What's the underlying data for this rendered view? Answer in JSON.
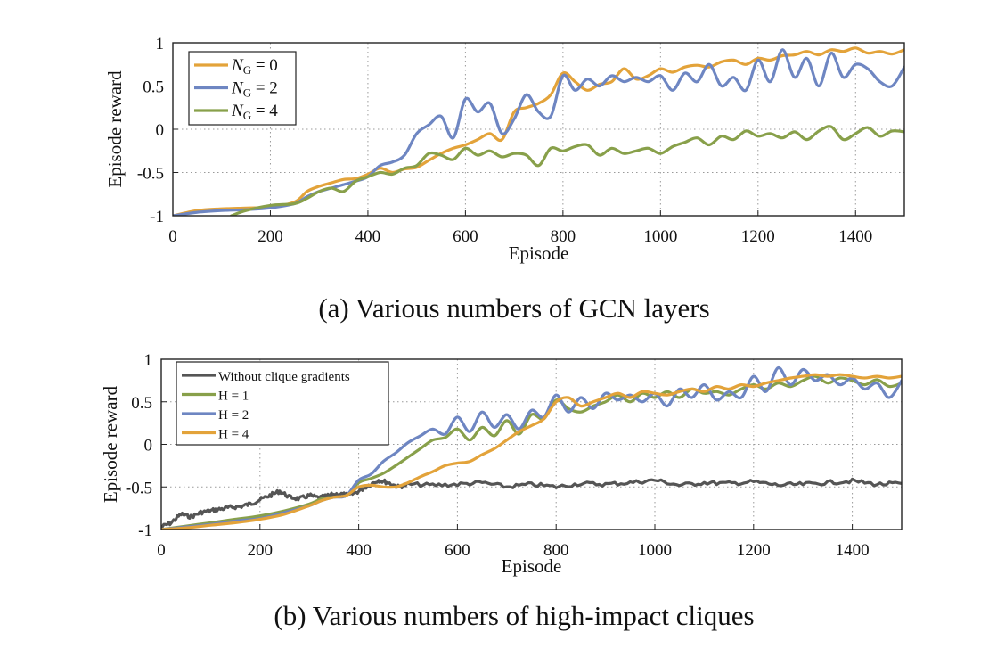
{
  "chart_data": [
    {
      "type": "line",
      "caption": "(a) Various numbers of GCN layers",
      "xlabel": "Episode",
      "ylabel": "Episode reward",
      "xlim": [
        0,
        1500
      ],
      "ylim": [
        -1,
        1
      ],
      "xticks": [
        0,
        200,
        400,
        600,
        800,
        1000,
        1200,
        1400
      ],
      "yticks": [
        1,
        0.5,
        0,
        -0.5,
        -1
      ],
      "ytick_labels": [
        "1",
        "0.5",
        "0",
        "-0.5",
        "-1"
      ],
      "grid": true,
      "legend_position": "top-left",
      "series": [
        {
          "name": "N_G = 0",
          "legend_main": "N",
          "legend_sub": "G",
          "legend_rest": " = 0",
          "color": "#E3A33A",
          "x": [
            0,
            50,
            100,
            150,
            200,
            250,
            275,
            300,
            325,
            350,
            375,
            400,
            425,
            450,
            475,
            500,
            525,
            550,
            575,
            600,
            625,
            650,
            675,
            700,
            725,
            750,
            775,
            800,
            825,
            850,
            875,
            900,
            925,
            950,
            975,
            1000,
            1025,
            1050,
            1075,
            1100,
            1125,
            1150,
            1175,
            1200,
            1225,
            1250,
            1275,
            1300,
            1325,
            1350,
            1375,
            1400,
            1425,
            1450,
            1475,
            1500
          ],
          "y": [
            -1,
            -0.94,
            -0.92,
            -0.91,
            -0.9,
            -0.84,
            -0.72,
            -0.66,
            -0.62,
            -0.58,
            -0.57,
            -0.52,
            -0.45,
            -0.5,
            -0.46,
            -0.44,
            -0.36,
            -0.28,
            -0.22,
            -0.18,
            -0.12,
            -0.05,
            -0.12,
            0.2,
            0.25,
            0.3,
            0.4,
            0.65,
            0.55,
            0.45,
            0.52,
            0.55,
            0.7,
            0.58,
            0.62,
            0.7,
            0.66,
            0.72,
            0.74,
            0.72,
            0.78,
            0.8,
            0.75,
            0.82,
            0.8,
            0.85,
            0.86,
            0.9,
            0.86,
            0.92,
            0.9,
            0.94,
            0.88,
            0.9,
            0.87,
            0.92
          ]
        },
        {
          "name": "N_G = 2",
          "legend_main": "N",
          "legend_sub": "G",
          "legend_rest": " = 2",
          "color": "#6E86C2",
          "x": [
            0,
            50,
            100,
            150,
            200,
            250,
            275,
            300,
            325,
            350,
            375,
            400,
            425,
            450,
            475,
            500,
            525,
            550,
            575,
            600,
            625,
            650,
            675,
            700,
            725,
            750,
            775,
            800,
            825,
            850,
            875,
            900,
            925,
            950,
            975,
            1000,
            1025,
            1050,
            1075,
            1100,
            1125,
            1150,
            1175,
            1200,
            1225,
            1250,
            1275,
            1300,
            1325,
            1350,
            1375,
            1400,
            1425,
            1450,
            1475,
            1500
          ],
          "y": [
            -1,
            -0.96,
            -0.94,
            -0.93,
            -0.91,
            -0.86,
            -0.78,
            -0.72,
            -0.68,
            -0.64,
            -0.6,
            -0.55,
            -0.42,
            -0.38,
            -0.3,
            -0.05,
            0.05,
            0.15,
            -0.1,
            0.35,
            0.2,
            0.3,
            -0.05,
            0.12,
            0.4,
            0.2,
            0.15,
            0.62,
            0.45,
            0.58,
            0.5,
            0.62,
            0.55,
            0.6,
            0.55,
            0.62,
            0.45,
            0.65,
            0.55,
            0.75,
            0.5,
            0.6,
            0.45,
            0.8,
            0.55,
            0.92,
            0.6,
            0.82,
            0.5,
            0.88,
            0.6,
            0.75,
            0.7,
            0.55,
            0.5,
            0.72
          ]
        },
        {
          "name": "N_G = 4",
          "legend_main": "N",
          "legend_sub": "G",
          "legend_rest": " = 4",
          "color": "#88A04A",
          "x": [
            120,
            150,
            200,
            250,
            275,
            300,
            325,
            350,
            375,
            400,
            425,
            450,
            475,
            500,
            525,
            550,
            575,
            600,
            625,
            650,
            675,
            700,
            725,
            750,
            775,
            800,
            825,
            850,
            875,
            900,
            925,
            950,
            975,
            1000,
            1025,
            1050,
            1075,
            1100,
            1125,
            1150,
            1175,
            1200,
            1225,
            1250,
            1275,
            1300,
            1325,
            1350,
            1375,
            1400,
            1425,
            1450,
            1475,
            1500
          ],
          "y": [
            -1,
            -0.94,
            -0.88,
            -0.86,
            -0.8,
            -0.72,
            -0.68,
            -0.72,
            -0.6,
            -0.55,
            -0.5,
            -0.52,
            -0.45,
            -0.42,
            -0.28,
            -0.3,
            -0.35,
            -0.22,
            -0.3,
            -0.25,
            -0.32,
            -0.28,
            -0.3,
            -0.42,
            -0.22,
            -0.25,
            -0.2,
            -0.18,
            -0.3,
            -0.22,
            -0.28,
            -0.25,
            -0.22,
            -0.28,
            -0.2,
            -0.15,
            -0.1,
            -0.18,
            -0.08,
            -0.12,
            -0.02,
            -0.08,
            -0.05,
            -0.1,
            -0.03,
            -0.12,
            -0.02,
            0.03,
            -0.12,
            -0.05,
            0.02,
            -0.08,
            -0.02,
            -0.03
          ]
        }
      ]
    },
    {
      "type": "line",
      "caption": "(b) Various numbers of high-impact cliques",
      "xlabel": "Episode",
      "ylabel": "Episode reward",
      "xlim": [
        0,
        1500
      ],
      "ylim": [
        -1,
        1
      ],
      "xticks": [
        0,
        200,
        400,
        600,
        800,
        1000,
        1200,
        1400
      ],
      "yticks": [
        1,
        0.5,
        0,
        -0.5,
        -1
      ],
      "ytick_labels": [
        "1",
        "0.5",
        "0",
        "-0.5",
        "-1"
      ],
      "grid": true,
      "legend_position": "top-left",
      "series": [
        {
          "name": "Without clique gradients",
          "color": "#555555",
          "noisy": true,
          "x": [
            0,
            20,
            40,
            60,
            80,
            100,
            120,
            140,
            160,
            180,
            200,
            220,
            240,
            260,
            280,
            300,
            320,
            340,
            360,
            380,
            400,
            420,
            440,
            460,
            480,
            500,
            550,
            600,
            650,
            700,
            750,
            800,
            850,
            900,
            950,
            1000,
            1050,
            1100,
            1150,
            1200,
            1250,
            1300,
            1350,
            1400,
            1450,
            1500
          ],
          "y": [
            -0.97,
            -0.92,
            -0.82,
            -0.85,
            -0.8,
            -0.78,
            -0.76,
            -0.74,
            -0.73,
            -0.7,
            -0.65,
            -0.6,
            -0.55,
            -0.62,
            -0.64,
            -0.6,
            -0.63,
            -0.6,
            -0.58,
            -0.6,
            -0.55,
            -0.48,
            -0.42,
            -0.45,
            -0.5,
            -0.47,
            -0.48,
            -0.47,
            -0.45,
            -0.5,
            -0.47,
            -0.5,
            -0.46,
            -0.47,
            -0.45,
            -0.42,
            -0.48,
            -0.45,
            -0.46,
            -0.44,
            -0.48,
            -0.47,
            -0.45,
            -0.43,
            -0.47,
            -0.46
          ]
        },
        {
          "name": "H = 1",
          "color": "#88A04A",
          "x": [
            0,
            50,
            100,
            150,
            200,
            250,
            300,
            325,
            350,
            375,
            400,
            425,
            450,
            475,
            500,
            525,
            550,
            575,
            600,
            625,
            650,
            675,
            700,
            725,
            750,
            775,
            800,
            825,
            850,
            875,
            900,
            925,
            950,
            975,
            1000,
            1025,
            1050,
            1075,
            1100,
            1125,
            1150,
            1175,
            1200,
            1225,
            1250,
            1275,
            1300,
            1325,
            1350,
            1375,
            1400,
            1425,
            1450,
            1475,
            1500
          ],
          "y": [
            -1,
            -0.96,
            -0.92,
            -0.88,
            -0.84,
            -0.78,
            -0.7,
            -0.64,
            -0.62,
            -0.6,
            -0.45,
            -0.4,
            -0.34,
            -0.25,
            -0.15,
            -0.05,
            0.05,
            0.08,
            0.18,
            0.05,
            0.2,
            0.1,
            0.28,
            0.12,
            0.35,
            0.3,
            0.52,
            0.42,
            0.38,
            0.45,
            0.5,
            0.58,
            0.5,
            0.6,
            0.55,
            0.62,
            0.55,
            0.65,
            0.6,
            0.62,
            0.58,
            0.65,
            0.7,
            0.65,
            0.72,
            0.68,
            0.75,
            0.8,
            0.72,
            0.78,
            0.75,
            0.7,
            0.76,
            0.68,
            0.72
          ]
        },
        {
          "name": "H = 2",
          "color": "#6E86C2",
          "x": [
            0,
            50,
            100,
            150,
            200,
            250,
            300,
            325,
            350,
            375,
            400,
            425,
            450,
            475,
            500,
            525,
            550,
            575,
            600,
            625,
            650,
            675,
            700,
            725,
            750,
            775,
            800,
            825,
            850,
            875,
            900,
            925,
            950,
            975,
            1000,
            1025,
            1050,
            1075,
            1100,
            1125,
            1150,
            1175,
            1200,
            1225,
            1250,
            1275,
            1300,
            1325,
            1350,
            1375,
            1400,
            1425,
            1450,
            1475,
            1500
          ],
          "y": [
            -1,
            -0.97,
            -0.94,
            -0.9,
            -0.87,
            -0.8,
            -0.72,
            -0.66,
            -0.62,
            -0.6,
            -0.42,
            -0.35,
            -0.2,
            -0.1,
            0.02,
            0.1,
            0.18,
            0.12,
            0.32,
            0.15,
            0.38,
            0.2,
            0.35,
            0.18,
            0.4,
            0.32,
            0.58,
            0.38,
            0.55,
            0.42,
            0.6,
            0.52,
            0.58,
            0.5,
            0.6,
            0.45,
            0.65,
            0.55,
            0.7,
            0.52,
            0.62,
            0.55,
            0.8,
            0.62,
            0.9,
            0.7,
            0.88,
            0.75,
            0.82,
            0.7,
            0.78,
            0.65,
            0.72,
            0.55,
            0.75
          ]
        },
        {
          "name": "H = 4",
          "color": "#E3A33A",
          "x": [
            0,
            50,
            100,
            150,
            200,
            250,
            300,
            325,
            350,
            375,
            400,
            425,
            450,
            475,
            500,
            525,
            550,
            575,
            600,
            625,
            650,
            675,
            700,
            725,
            750,
            775,
            800,
            825,
            850,
            875,
            900,
            925,
            950,
            975,
            1000,
            1025,
            1050,
            1075,
            1100,
            1125,
            1150,
            1175,
            1200,
            1225,
            1250,
            1275,
            1300,
            1325,
            1350,
            1375,
            1400,
            1425,
            1450,
            1475,
            1500
          ],
          "y": [
            -1,
            -0.98,
            -0.95,
            -0.92,
            -0.88,
            -0.82,
            -0.72,
            -0.66,
            -0.62,
            -0.6,
            -0.5,
            -0.48,
            -0.5,
            -0.5,
            -0.45,
            -0.38,
            -0.32,
            -0.25,
            -0.22,
            -0.2,
            -0.12,
            -0.05,
            0.05,
            0.15,
            0.22,
            0.3,
            0.5,
            0.55,
            0.45,
            0.5,
            0.55,
            0.6,
            0.55,
            0.62,
            0.6,
            0.58,
            0.62,
            0.65,
            0.62,
            0.68,
            0.65,
            0.7,
            0.68,
            0.72,
            0.75,
            0.78,
            0.8,
            0.82,
            0.8,
            0.82,
            0.8,
            0.78,
            0.8,
            0.78,
            0.8
          ]
        }
      ]
    }
  ]
}
